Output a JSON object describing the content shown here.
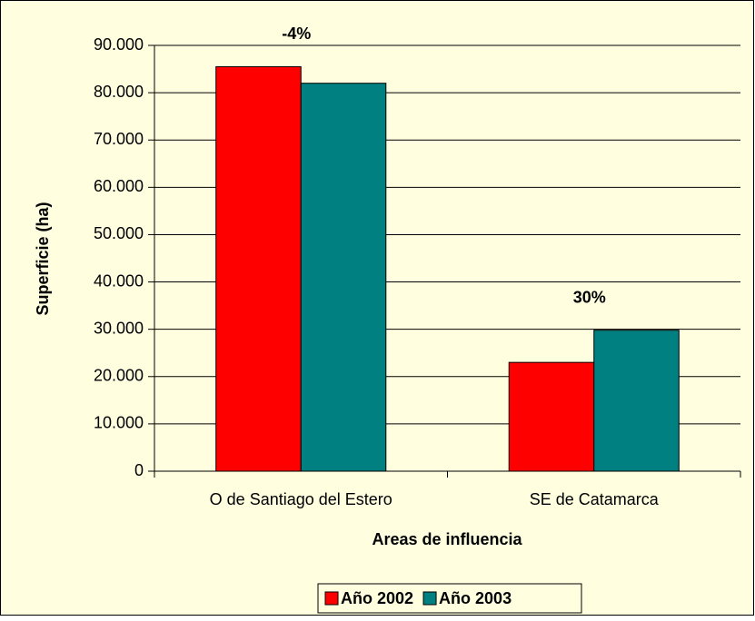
{
  "chart_data": {
    "type": "bar",
    "categories": [
      "O de Santiago del Estero",
      "SE de Catamarca"
    ],
    "series": [
      {
        "name": "Año 2002",
        "color": "#ff0000",
        "values": [
          85500,
          23000
        ]
      },
      {
        "name": "Año 2003",
        "color": "#008080",
        "values": [
          82000,
          29800
        ]
      }
    ],
    "annotations": [
      "-4%",
      "30%"
    ],
    "x_label": "Areas de influencia",
    "y_label": "Superficie (ha)",
    "ylim": [
      0,
      90000
    ],
    "yticks": [
      0,
      {
        "value": 10000,
        "label": "10.000"
      },
      {
        "value": 20000,
        "label": "20.000"
      },
      {
        "value": 30000,
        "label": "30.000"
      },
      {
        "value": 40000,
        "label": "40.000"
      },
      {
        "value": 50000,
        "label": "50.000"
      },
      {
        "value": 60000,
        "label": "60.000"
      },
      {
        "value": 70000,
        "label": "70.000"
      },
      {
        "value": 80000,
        "label": "80.000"
      },
      {
        "value": 90000,
        "label": "90.000"
      }
    ],
    "grid": true,
    "legend": "bottom"
  }
}
